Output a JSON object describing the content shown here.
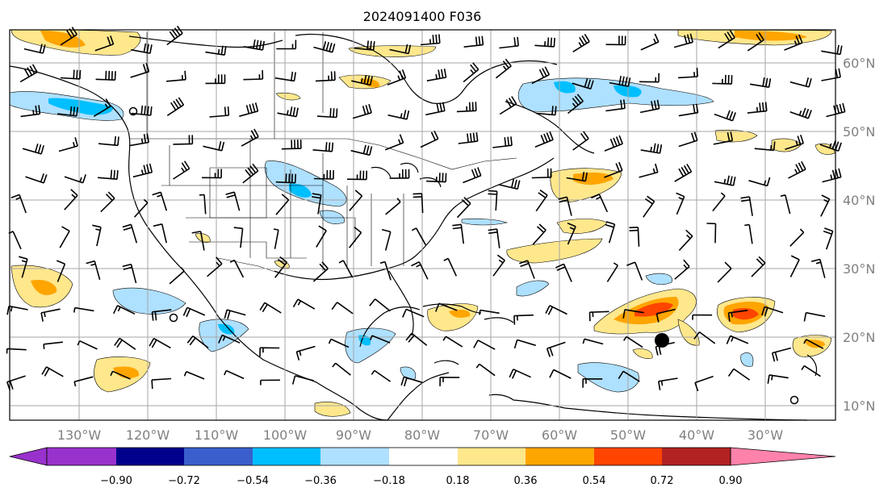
{
  "title": "2024091400 F036",
  "map": {
    "lon_labels": [
      "130°W",
      "120°W",
      "110°W",
      "100°W",
      "90°W",
      "80°W",
      "70°W",
      "60°W",
      "50°W",
      "40°W",
      "30°W"
    ],
    "lat_labels": [
      "60°N",
      "50°N",
      "40°N",
      "30°N",
      "20°N",
      "10°N"
    ],
    "label_color": "#808080"
  },
  "colorbar": {
    "tick_labels": [
      "−0.90",
      "−0.72",
      "−0.54",
      "−0.36",
      "−0.18",
      "0.18",
      "0.36",
      "0.54",
      "0.72",
      "0.90"
    ],
    "levels": [
      -0.9,
      -0.72,
      -0.54,
      -0.36,
      -0.18,
      0.18,
      0.36,
      0.54,
      0.72,
      0.9
    ],
    "colors": [
      "#9932cc",
      "#00008b",
      "#3a5fcd",
      "#00bfff",
      "#aee0ff",
      "#ffffff",
      "#ffe78c",
      "#ffa500",
      "#ff4500",
      "#b22222",
      "#ff82ab"
    ]
  }
}
